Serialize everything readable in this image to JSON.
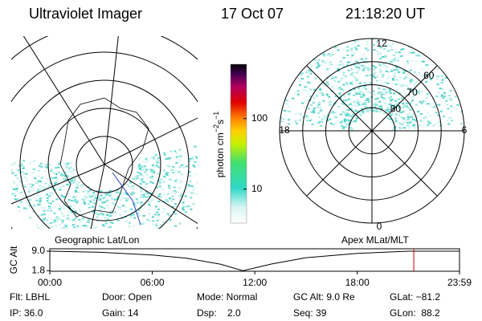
{
  "header": {
    "title": "Ultraviolet Imager",
    "date": "17 Oct 07",
    "time": "21:18:20 UT"
  },
  "colorbar": {
    "units": {
      "base": "photon cm",
      "exp1": "−2",
      "mid": "s",
      "exp2": "−1"
    },
    "log": true,
    "lim": [
      3.3,
      590
    ],
    "ticks": [
      10,
      100
    ]
  },
  "polar": {
    "mlt_labels": [
      "12",
      "6",
      "0",
      "18"
    ],
    "mlat_lim": [
      90,
      50
    ],
    "mlat_rings": [
      80,
      70,
      60
    ]
  },
  "map_labels": {
    "left": "Geographic Lat/Lon",
    "right": "Apex MLat/MLT"
  },
  "altitude": {
    "ylabel": "GC Alt",
    "xlim": [
      0,
      23.983
    ],
    "ylim": [
      1.6,
      9.9
    ],
    "xticks": [
      {
        "value": 0,
        "label": "00:00"
      },
      {
        "value": 6,
        "label": "06:00"
      },
      {
        "value": 12,
        "label": "12:00"
      },
      {
        "value": 18,
        "label": "18:00"
      },
      {
        "value": 23.983,
        "label": "23:59"
      }
    ],
    "yticks": [
      {
        "value": 9,
        "label": "9.0"
      },
      1.8
    ],
    "x": [
      0,
      3,
      6,
      8,
      10,
      11.3,
      13,
      15,
      18,
      21,
      23.983
    ],
    "values": [
      9.0,
      8.6,
      7.6,
      6.4,
      4.2,
      1.8,
      4.3,
      6.6,
      8.2,
      9.0,
      9.0
    ],
    "marker_time": 21.306,
    "color": "#000000",
    "marker_color": "#cc0000"
  },
  "footer": {
    "rows": [
      [
        "Flt: LBHL",
        "Door: Open",
        "Mode: Normal",
        "GC Alt: 9.0 Re",
        "GLat: −81.2"
      ],
      [
        "IP: 36.0",
        "Gain: 14",
        "Dsp:    2.0",
        "Seq: 39",
        "GLon:  88.2"
      ]
    ]
  }
}
